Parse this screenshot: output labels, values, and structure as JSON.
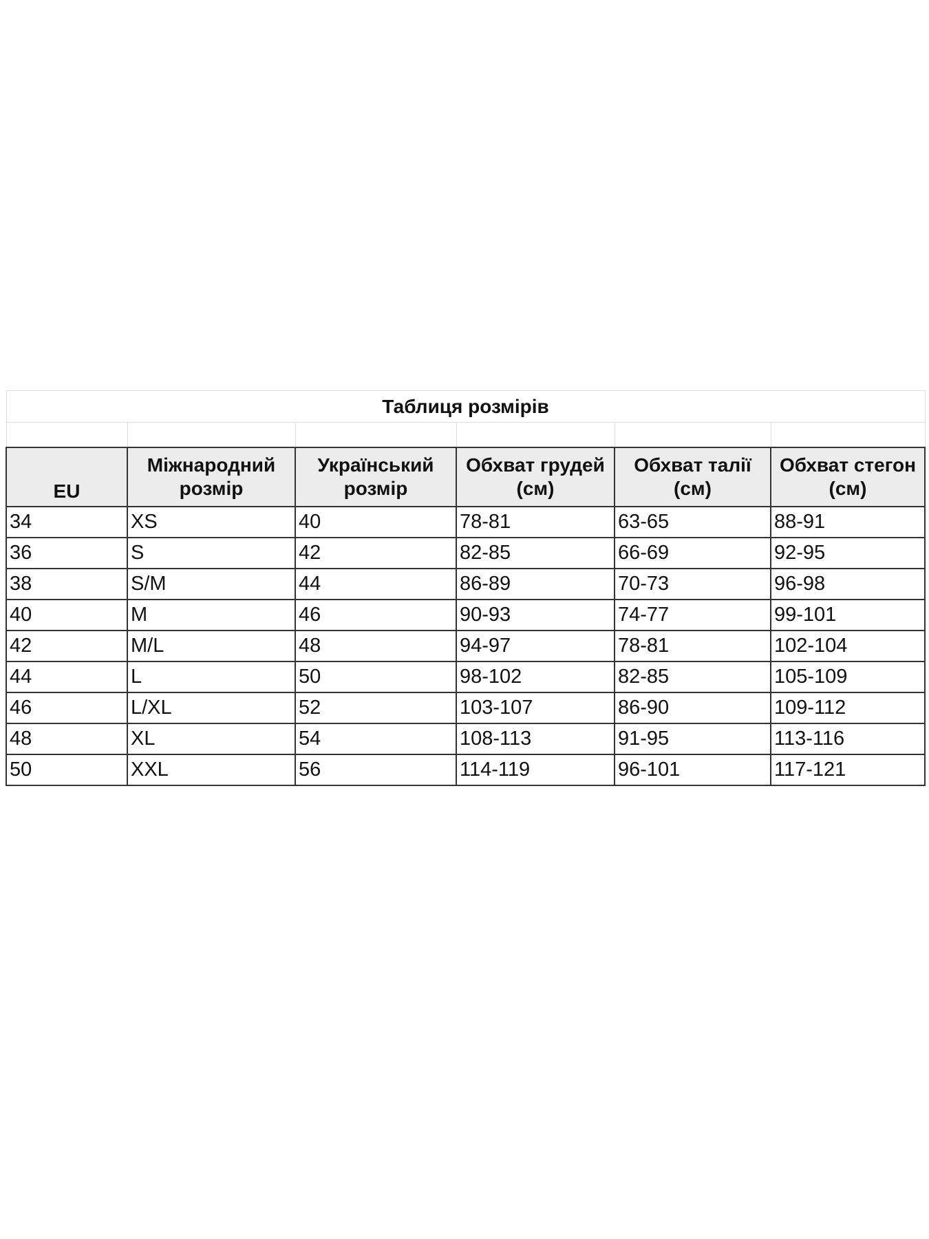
{
  "title": "Таблиця розмірів",
  "headers": [
    "EU",
    "Міжнародний розмір",
    "Український розмір",
    "Обхват грудей (см)",
    "Обхват талії (см)",
    "Обхват стегон (см)"
  ],
  "rows": [
    [
      "34",
      "XS",
      "40",
      "78-81",
      "63-65",
      "88-91"
    ],
    [
      "36",
      "S",
      "42",
      "82-85",
      "66-69",
      "92-95"
    ],
    [
      "38",
      "S/M",
      "44",
      "86-89",
      "70-73",
      "96-98"
    ],
    [
      "40",
      "M",
      "46",
      "90-93",
      "74-77",
      "99-101"
    ],
    [
      "42",
      "M/L",
      "48",
      "94-97",
      "78-81",
      "102-104"
    ],
    [
      "44",
      "L",
      "50",
      "98-102",
      "82-85",
      "105-109"
    ],
    [
      "46",
      "L/XL",
      "52",
      "103-107",
      "86-90",
      "109-112"
    ],
    [
      "48",
      "XL",
      "54",
      "108-113",
      "91-95",
      "113-116"
    ],
    [
      "50",
      "XXL",
      "56",
      "114-119",
      "96-101",
      "117-121"
    ]
  ],
  "colors": {
    "header_bg": "#ececec",
    "border": "#333333"
  }
}
